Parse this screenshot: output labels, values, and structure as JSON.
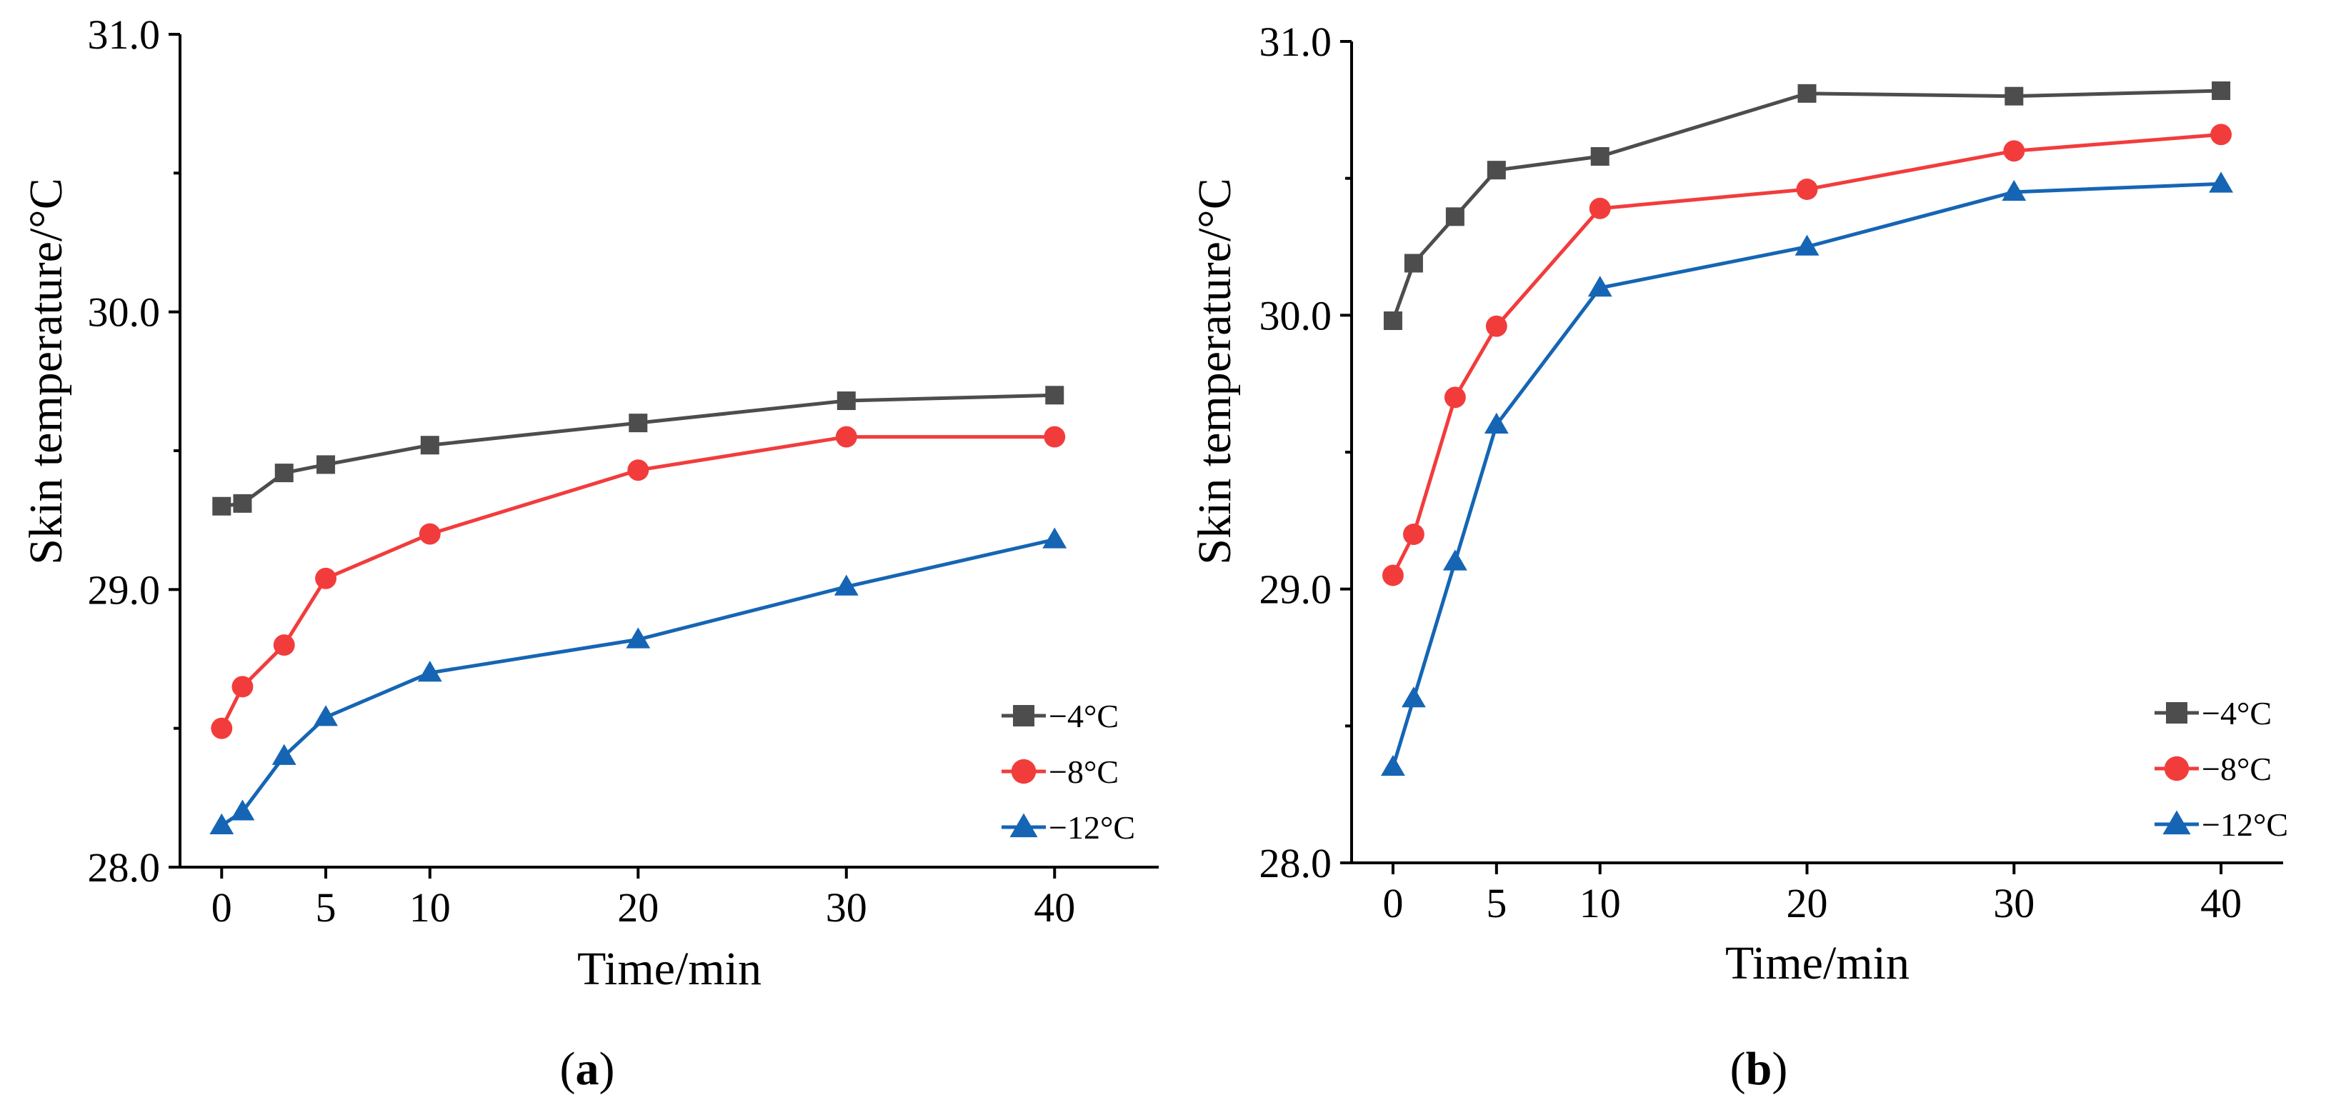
{
  "figure": {
    "panel_labels": [
      {
        "open": "(",
        "letter": "a",
        "close": ")"
      },
      {
        "open": "(",
        "letter": "b",
        "close": ")"
      }
    ]
  },
  "chart_data": [
    {
      "type": "line",
      "xlabel": "Time/min",
      "ylabel": "Skin temperature/°C",
      "xlim": [
        -2,
        45
      ],
      "ylim": [
        28.0,
        31.0
      ],
      "xticks": [
        0,
        5,
        10,
        20,
        30,
        40
      ],
      "yticks": [
        28.0,
        29.0,
        30.0,
        31.0
      ],
      "ytick_labels": [
        "28.0",
        "29.0",
        "30.0",
        "31.0"
      ],
      "legend_position": "bottom-right",
      "grid": false,
      "x": [
        0,
        1,
        3,
        5,
        10,
        20,
        30,
        40
      ],
      "series": [
        {
          "name": "−4°C",
          "color": "#4d4d4d",
          "marker": "square",
          "values": [
            29.3,
            29.31,
            29.42,
            29.45,
            29.52,
            29.6,
            29.68,
            29.7
          ]
        },
        {
          "name": "−8°C",
          "color": "#f23c3c",
          "marker": "circle",
          "values": [
            28.5,
            28.65,
            28.8,
            29.04,
            29.2,
            29.43,
            29.55,
            29.55
          ]
        },
        {
          "name": "−12°C",
          "color": "#1565b4",
          "marker": "triangle",
          "values": [
            28.15,
            28.2,
            28.4,
            28.54,
            28.7,
            28.82,
            29.01,
            29.18
          ]
        }
      ]
    },
    {
      "type": "line",
      "xlabel": "Time/min",
      "ylabel": "Skin temperature/°C",
      "xlim": [
        -2,
        43
      ],
      "ylim": [
        28.0,
        31.0
      ],
      "xticks": [
        0,
        5,
        10,
        20,
        30,
        40
      ],
      "yticks": [
        28.0,
        29.0,
        30.0,
        31.0
      ],
      "ytick_labels": [
        "28.0",
        "29.0",
        "30.0",
        "31.0"
      ],
      "legend_position": "bottom-right",
      "grid": false,
      "x": [
        0,
        1,
        3,
        5,
        10,
        20,
        30,
        40
      ],
      "series": [
        {
          "name": "−4°C",
          "color": "#4d4d4d",
          "marker": "square",
          "values": [
            29.98,
            30.19,
            30.36,
            30.53,
            30.58,
            30.81,
            30.8,
            30.82
          ]
        },
        {
          "name": "−8°C",
          "color": "#f23c3c",
          "marker": "circle",
          "values": [
            29.05,
            29.2,
            29.7,
            29.96,
            30.39,
            30.46,
            30.6,
            30.66
          ]
        },
        {
          "name": "−12°C",
          "color": "#1565b4",
          "marker": "triangle",
          "values": [
            28.35,
            28.6,
            29.1,
            29.6,
            30.1,
            30.25,
            30.45,
            30.48
          ]
        }
      ]
    }
  ]
}
